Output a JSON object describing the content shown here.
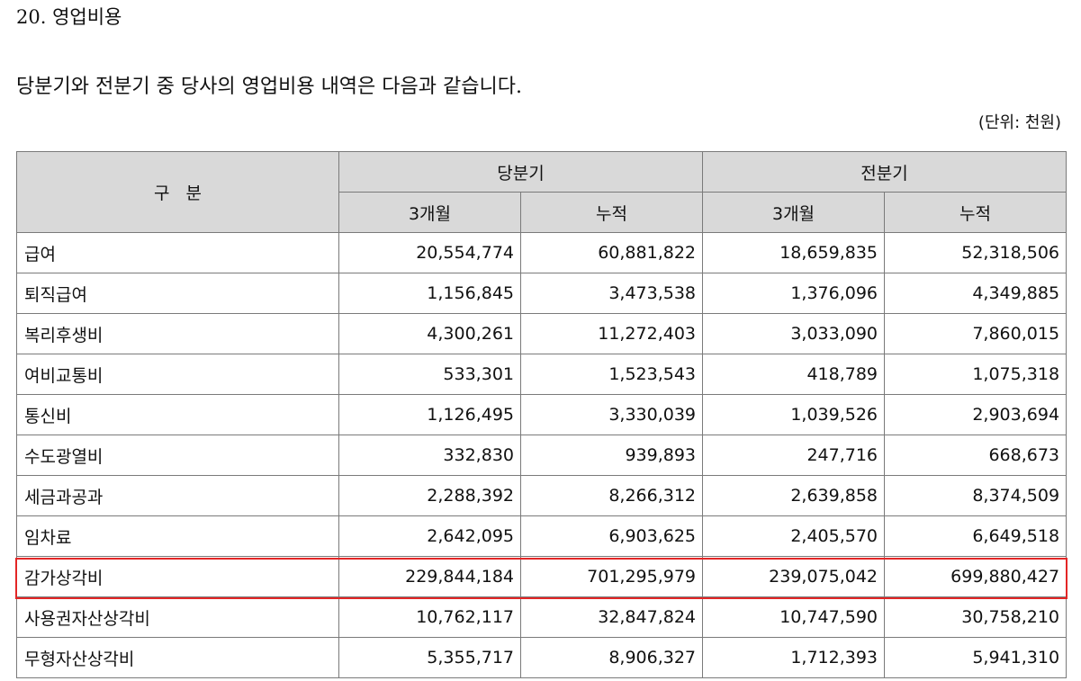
{
  "section_title": "20. 영업비용",
  "intro": "당분기와 전분기 중 당사의 영업비용 내역은 다음과 같습니다.",
  "unit": "(단위: 천원)",
  "table": {
    "header_label": "구분",
    "period_current": "당분기",
    "period_previous": "전분기",
    "sub_3m": "3개월",
    "sub_cumulative": "누적",
    "rows": [
      {
        "label": "급여",
        "values": [
          "20,554,774",
          "60,881,822",
          "18,659,835",
          "52,318,506"
        ]
      },
      {
        "label": "퇴직급여",
        "values": [
          "1,156,845",
          "3,473,538",
          "1,376,096",
          "4,349,885"
        ]
      },
      {
        "label": "복리후생비",
        "values": [
          "4,300,261",
          "11,272,403",
          "3,033,090",
          "7,860,015"
        ]
      },
      {
        "label": "여비교통비",
        "values": [
          "533,301",
          "1,523,543",
          "418,789",
          "1,075,318"
        ]
      },
      {
        "label": "통신비",
        "values": [
          "1,126,495",
          "3,330,039",
          "1,039,526",
          "2,903,694"
        ]
      },
      {
        "label": "수도광열비",
        "values": [
          "332,830",
          "939,893",
          "247,716",
          "668,673"
        ]
      },
      {
        "label": "세금과공과",
        "values": [
          "2,288,392",
          "8,266,312",
          "2,639,858",
          "8,374,509"
        ]
      },
      {
        "label": "임차료",
        "values": [
          "2,642,095",
          "6,903,625",
          "2,405,570",
          "6,649,518"
        ]
      },
      {
        "label": "감가상각비",
        "values": [
          "229,844,184",
          "701,295,979",
          "239,075,042",
          "699,880,427"
        ]
      },
      {
        "label": "사용권자산상각비",
        "values": [
          "10,762,117",
          "32,847,824",
          "10,747,590",
          "30,758,210"
        ]
      },
      {
        "label": "무형자산상각비",
        "values": [
          "5,355,717",
          "8,906,327",
          "1,712,393",
          "5,941,310"
        ]
      }
    ]
  },
  "highlight_color": "#e32626"
}
